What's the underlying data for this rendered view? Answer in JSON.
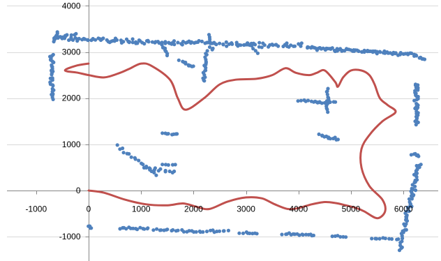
{
  "chart_data": {
    "type": "scatter",
    "title": "",
    "xlabel": "",
    "ylabel": "",
    "xlim": [
      -1400,
      6600
    ],
    "ylim": [
      -1500,
      4100
    ],
    "x_ticks": [
      -1000,
      0,
      1000,
      2000,
      3000,
      4000,
      5000,
      6000
    ],
    "y_ticks": [
      -1000,
      0,
      1000,
      2000,
      3000,
      4000
    ],
    "x_tick_labels": [
      "-1000",
      "0",
      "1000",
      "2000",
      "3000",
      "4000",
      "5000",
      "6000"
    ],
    "y_tick_labels": [
      "-1000",
      "0",
      "1000",
      "2000",
      "3000",
      "4000"
    ],
    "grid": "horizontal",
    "legend": "none",
    "series_colors": {
      "points": "#4f81bd",
      "trajectory": "#c0504d"
    },
    "series": [
      {
        "kind": "scatter",
        "color": "#4f81bd",
        "clusters": [
          {
            "from": [
              -600,
              3400
            ],
            "to": [
              -650,
              3250
            ],
            "count": 12,
            "spread": 50
          },
          {
            "from": [
              -650,
              3300
            ],
            "to": [
              1600,
              3200
            ],
            "count": 70,
            "spread": 55
          },
          {
            "from": [
              1600,
              3200
            ],
            "to": [
              4050,
              3150
            ],
            "count": 70,
            "spread": 55
          },
          {
            "from": [
              -250,
              3400
            ],
            "to": [
              -600,
              3300
            ],
            "count": 8,
            "spread": 40
          },
          {
            "from": [
              1400,
              3150
            ],
            "to": [
              1500,
              2950
            ],
            "count": 10,
            "spread": 40
          },
          {
            "from": [
              2300,
              3350
            ],
            "to": [
              2350,
              3050
            ],
            "count": 8,
            "spread": 40
          },
          {
            "from": [
              3050,
              3200
            ],
            "to": [
              3200,
              3000
            ],
            "count": 6,
            "spread": 40
          },
          {
            "from": [
              4150,
              3100
            ],
            "to": [
              6150,
              2950
            ],
            "count": 80,
            "spread": 45
          },
          {
            "from": [
              6150,
              2950
            ],
            "to": [
              6400,
              2850
            ],
            "count": 10,
            "spread": 40
          },
          {
            "from": [
              -700,
              2950
            ],
            "to": [
              -700,
              2000
            ],
            "count": 35,
            "spread": 45
          },
          {
            "from": [
              2250,
              3000
            ],
            "to": [
              2200,
              2350
            ],
            "count": 18,
            "spread": 30
          },
          {
            "from": [
              1750,
              2800
            ],
            "to": [
              2000,
              2700
            ],
            "count": 10,
            "spread": 40
          },
          {
            "from": [
              6250,
              2300
            ],
            "to": [
              6250,
              1450
            ],
            "count": 40,
            "spread": 45
          },
          {
            "from": [
              4000,
              1950
            ],
            "to": [
              4450,
              1900
            ],
            "count": 10,
            "spread": 30
          },
          {
            "from": [
              4550,
              2200
            ],
            "to": [
              4550,
              1700
            ],
            "count": 14,
            "spread": 35
          },
          {
            "from": [
              4300,
              1900
            ],
            "to": [
              4700,
              1900
            ],
            "count": 8,
            "spread": 35
          },
          {
            "from": [
              4400,
              1200
            ],
            "to": [
              4750,
              1100
            ],
            "count": 12,
            "spread": 35
          },
          {
            "from": [
              1400,
              1250
            ],
            "to": [
              1700,
              1200
            ],
            "count": 8,
            "spread": 30
          },
          {
            "from": [
              550,
              950
            ],
            "to": [
              1300,
              350
            ],
            "count": 18,
            "spread": 40
          },
          {
            "from": [
              1050,
              500
            ],
            "to": [
              1650,
              380
            ],
            "count": 12,
            "spread": 40
          },
          {
            "from": [
              1400,
              550
            ],
            "to": [
              1650,
              550
            ],
            "count": 5,
            "spread": 30
          },
          {
            "from": [
              6150,
              800
            ],
            "to": [
              6300,
              750
            ],
            "count": 6,
            "spread": 40
          },
          {
            "from": [
              6300,
              600
            ],
            "to": [
              6000,
              -900
            ],
            "count": 55,
            "spread": 60
          },
          {
            "from": [
              6000,
              -900
            ],
            "to": [
              5950,
              -1300
            ],
            "count": 10,
            "spread": 50
          },
          {
            "from": [
              -10,
              -780
            ],
            "to": [
              60,
              -820
            ],
            "count": 4,
            "spread": 25
          },
          {
            "from": [
              600,
              -820
            ],
            "to": [
              1150,
              -830
            ],
            "count": 14,
            "spread": 30
          },
          {
            "from": [
              1250,
              -850
            ],
            "to": [
              1950,
              -880
            ],
            "count": 16,
            "spread": 30
          },
          {
            "from": [
              2000,
              -890
            ],
            "to": [
              2650,
              -880
            ],
            "count": 14,
            "spread": 30
          },
          {
            "from": [
              2900,
              -910
            ],
            "to": [
              3200,
              -930
            ],
            "count": 8,
            "spread": 30
          },
          {
            "from": [
              3700,
              -940
            ],
            "to": [
              4300,
              -970
            ],
            "count": 16,
            "spread": 30
          },
          {
            "from": [
              4650,
              -1000
            ],
            "to": [
              4900,
              -1010
            ],
            "count": 6,
            "spread": 25
          },
          {
            "from": [
              5400,
              -1040
            ],
            "to": [
              5900,
              -1050
            ],
            "count": 10,
            "spread": 30
          }
        ]
      },
      {
        "kind": "line",
        "color": "#c0504d",
        "points": [
          [
            0,
            0
          ],
          [
            300,
            -50
          ],
          [
            700,
            -200
          ],
          [
            1100,
            -300
          ],
          [
            1500,
            -320
          ],
          [
            1800,
            -280
          ],
          [
            2050,
            -350
          ],
          [
            2300,
            -400
          ],
          [
            2650,
            -240
          ],
          [
            3000,
            -150
          ],
          [
            3300,
            -170
          ],
          [
            3550,
            -300
          ],
          [
            3800,
            -400
          ],
          [
            4000,
            -380
          ],
          [
            4250,
            -300
          ],
          [
            4500,
            -250
          ],
          [
            4700,
            -270
          ],
          [
            4900,
            -320
          ],
          [
            5100,
            -380
          ],
          [
            5250,
            -450
          ],
          [
            5500,
            -600
          ],
          [
            5650,
            -450
          ],
          [
            5600,
            -200
          ],
          [
            5350,
            100
          ],
          [
            5200,
            500
          ],
          [
            5200,
            900
          ],
          [
            5350,
            1200
          ],
          [
            5600,
            1500
          ],
          [
            5850,
            1700
          ],
          [
            5700,
            1850
          ],
          [
            5550,
            2000
          ],
          [
            5450,
            2300
          ],
          [
            5350,
            2500
          ],
          [
            5200,
            2600
          ],
          [
            5000,
            2600
          ],
          [
            4850,
            2450
          ],
          [
            4750,
            2250
          ],
          [
            4700,
            2350
          ],
          [
            4500,
            2600
          ],
          [
            4350,
            2550
          ],
          [
            4200,
            2500
          ],
          [
            3950,
            2550
          ],
          [
            3750,
            2650
          ],
          [
            3500,
            2500
          ],
          [
            3200,
            2420
          ],
          [
            2800,
            2400
          ],
          [
            2500,
            2300
          ],
          [
            2200,
            2000
          ],
          [
            1850,
            1750
          ],
          [
            1700,
            2000
          ],
          [
            1550,
            2400
          ],
          [
            1200,
            2700
          ],
          [
            1000,
            2750
          ],
          [
            800,
            2650
          ],
          [
            600,
            2550
          ],
          [
            300,
            2450
          ],
          [
            0,
            2500
          ],
          [
            -200,
            2550
          ],
          [
            -450,
            2600
          ],
          [
            -250,
            2700
          ],
          [
            0,
            2750
          ]
        ]
      }
    ]
  }
}
